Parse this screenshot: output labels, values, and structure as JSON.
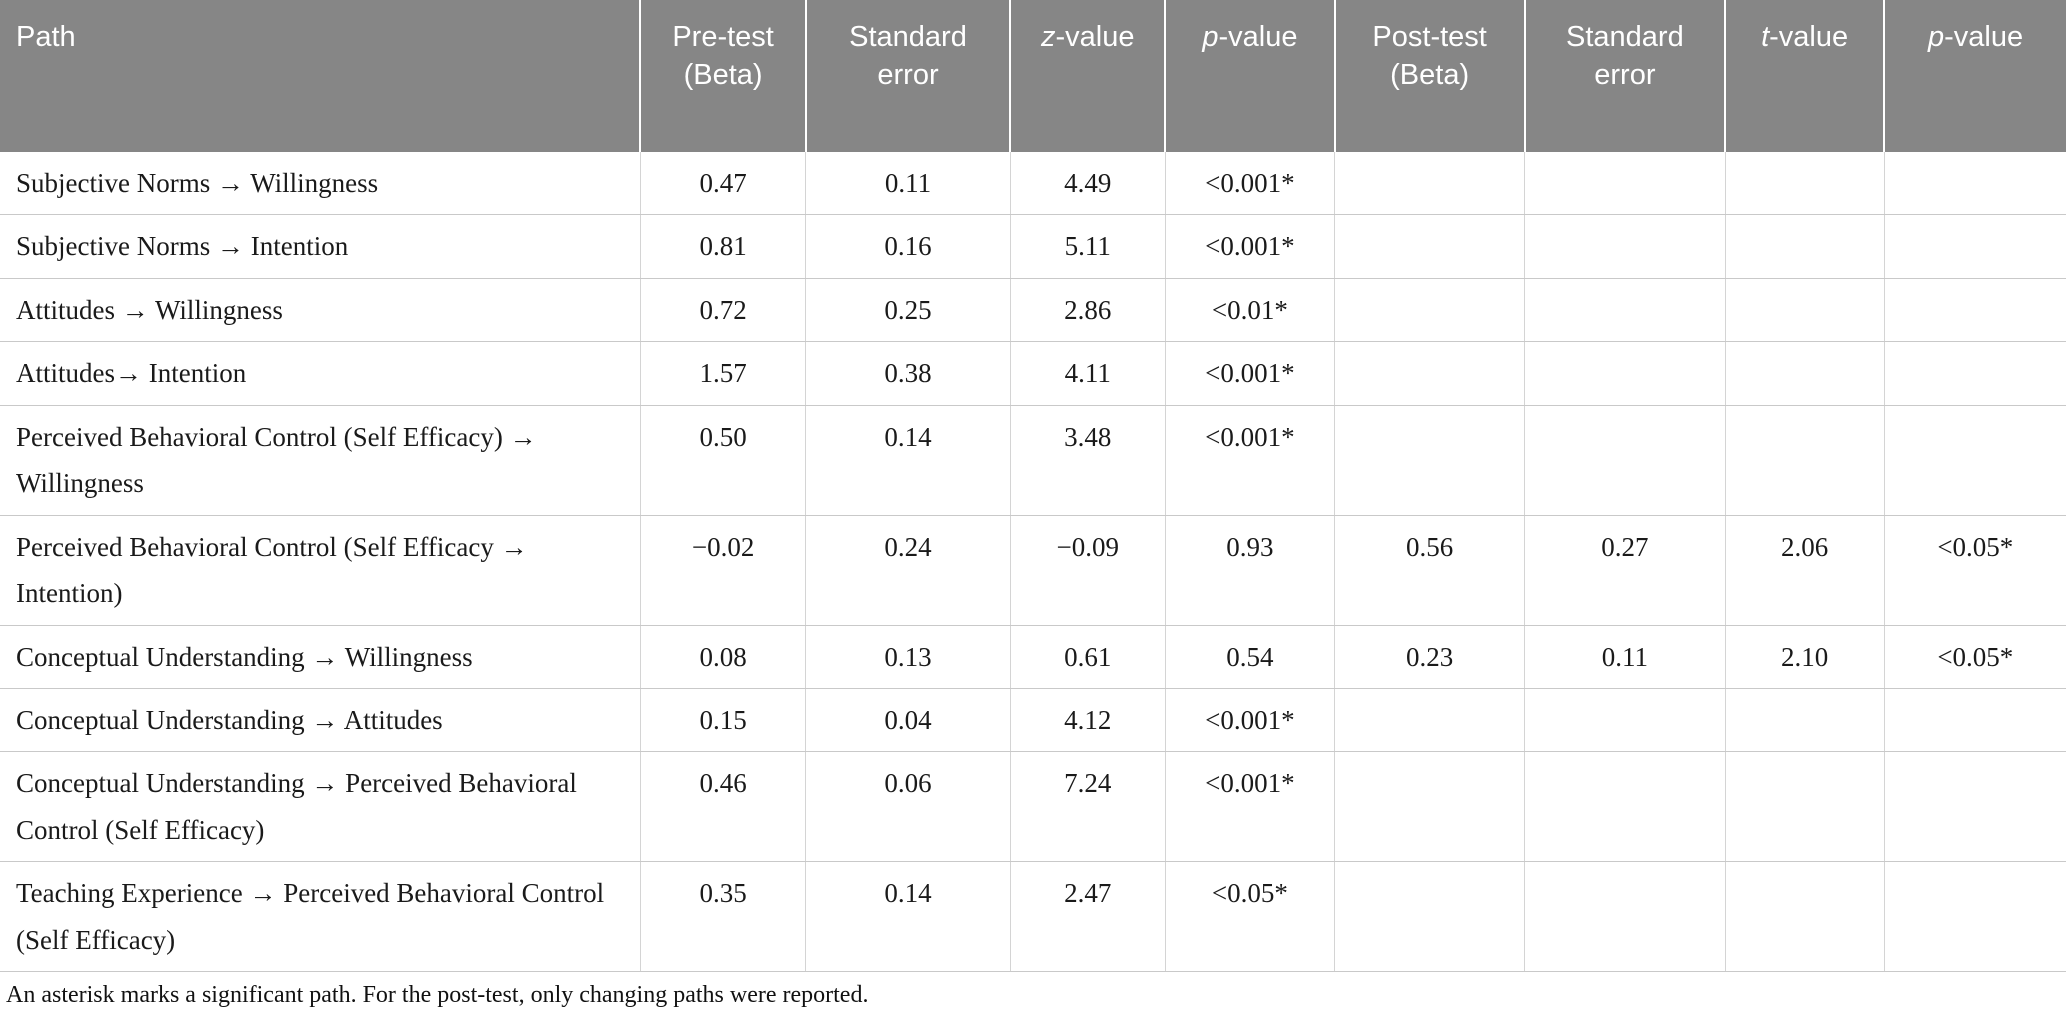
{
  "table": {
    "columns": [
      {
        "italic": "",
        "label": "Path"
      },
      {
        "italic": "",
        "label": "Pre-test (Beta)"
      },
      {
        "italic": "",
        "label": "Standard error"
      },
      {
        "italic": "z",
        "label": "-value"
      },
      {
        "italic": "p",
        "label": "-value"
      },
      {
        "italic": "",
        "label": "Post-test (Beta)"
      },
      {
        "italic": "",
        "label": "Standard error"
      },
      {
        "italic": "t",
        "label": "-value"
      },
      {
        "italic": "p",
        "label": "-value"
      }
    ],
    "rows": [
      {
        "path": "Subjective Norms → Willingness",
        "values": [
          "0.47",
          "0.11",
          "4.49",
          "<0.001*",
          "",
          "",
          "",
          ""
        ]
      },
      {
        "path": "Subjective Norms → Intention",
        "values": [
          "0.81",
          "0.16",
          "5.11",
          "<0.001*",
          "",
          "",
          "",
          ""
        ]
      },
      {
        "path": "Attitudes → Willingness",
        "values": [
          "0.72",
          "0.25",
          "2.86",
          "<0.01*",
          "",
          "",
          "",
          ""
        ]
      },
      {
        "path": "Attitudes→ Intention",
        "values": [
          "1.57",
          "0.38",
          "4.11",
          "<0.001*",
          "",
          "",
          "",
          ""
        ]
      },
      {
        "path": "Perceived Behavioral Control (Self Efficacy) → Willingness",
        "values": [
          "0.50",
          "0.14",
          "3.48",
          "<0.001*",
          "",
          "",
          "",
          ""
        ]
      },
      {
        "path": "Perceived Behavioral Control (Self Efficacy → Intention)",
        "values": [
          "−0.02",
          "0.24",
          "−0.09",
          "0.93",
          "0.56",
          "0.27",
          "2.06",
          "<0.05*"
        ]
      },
      {
        "path": "Conceptual Understanding → Willingness",
        "values": [
          "0.08",
          "0.13",
          "0.61",
          "0.54",
          "0.23",
          "0.11",
          "2.10",
          "<0.05*"
        ]
      },
      {
        "path": "Conceptual Understanding → Attitudes",
        "values": [
          "0.15",
          "0.04",
          "4.12",
          "<0.001*",
          "",
          "",
          "",
          ""
        ]
      },
      {
        "path": "Conceptual Understanding → Perceived Behavioral Control (Self Efficacy)",
        "values": [
          "0.46",
          "0.06",
          "7.24",
          "<0.001*",
          "",
          "",
          "",
          ""
        ]
      },
      {
        "path": "Teaching Experience → Perceived Behavioral Control (Self Efficacy)",
        "values": [
          "0.35",
          "0.14",
          "2.47",
          "<0.05*",
          "",
          "",
          "",
          ""
        ]
      }
    ]
  },
  "footnote": "An asterisk marks a significant path. For the post-test, only changing paths were reported.",
  "colors": {
    "header_background": "#868686",
    "header_text": "#ffffff",
    "body_text": "#1a1a1a",
    "grid_line": "#c9c9c9"
  }
}
